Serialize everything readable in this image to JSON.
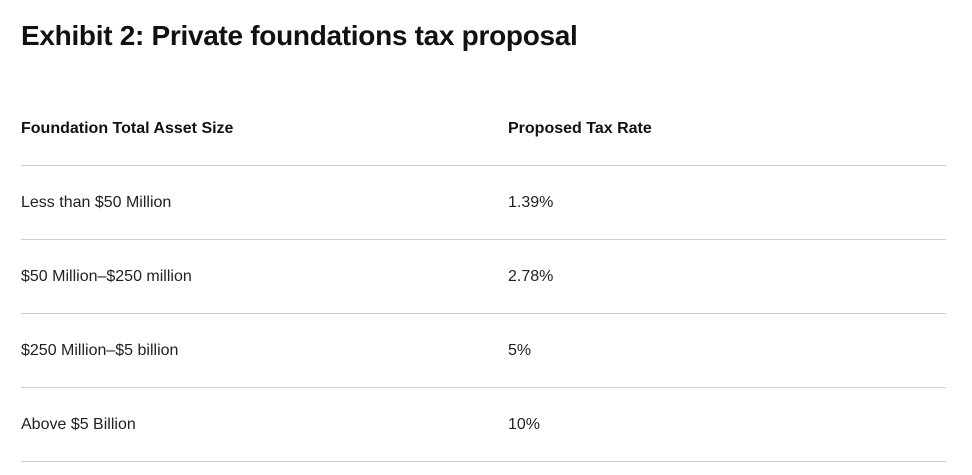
{
  "title": "Exhibit  2: Private foundations tax proposal",
  "table": {
    "headers": [
      "Foundation Total Asset Size",
      "Proposed Tax Rate"
    ],
    "rows": [
      [
        "Less than $50 Million",
        "1.39%"
      ],
      [
        "$50 Million–$250 million",
        "2.78%"
      ],
      [
        "$250 Million–$5 billion",
        "5%"
      ],
      [
        "Above $5 Billion",
        "10%"
      ]
    ]
  }
}
